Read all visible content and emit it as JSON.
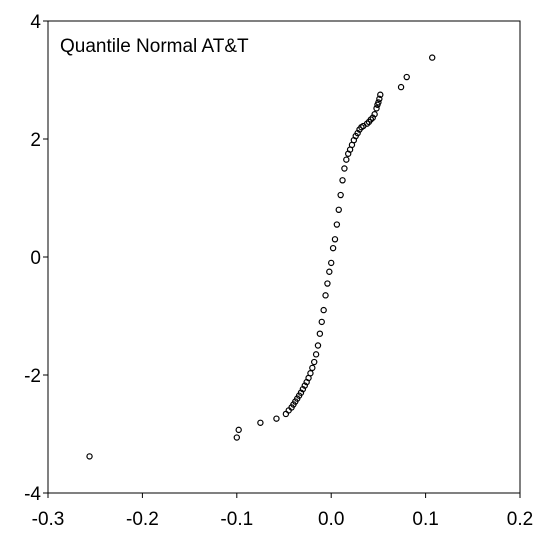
{
  "chart_data": {
    "type": "scatter",
    "title": "Quantile Normal AT&T",
    "xlabel": "",
    "ylabel": "",
    "xlim": [
      -0.3,
      0.2
    ],
    "ylim": [
      -4,
      4
    ],
    "x_ticks": [
      -0.3,
      -0.2,
      -0.1,
      0.0,
      0.1,
      0.2
    ],
    "x_tick_labels": [
      "-0.3",
      "-0.2",
      "-0.1",
      "0.0",
      "0.1",
      "0.2"
    ],
    "y_ticks": [
      -4,
      -2,
      0,
      2,
      4
    ],
    "y_tick_labels": [
      "-4",
      "-2",
      "0",
      "2",
      "4"
    ],
    "grid": false,
    "legend": "none",
    "marker": "open-circle",
    "marker_color": "#000000",
    "series": [
      {
        "points": [
          [
            -0.256,
            -3.38
          ],
          [
            -0.1,
            -3.06
          ],
          [
            -0.098,
            -2.93
          ],
          [
            -0.075,
            -2.81
          ],
          [
            -0.058,
            -2.74
          ],
          [
            -0.048,
            -2.66
          ],
          [
            -0.045,
            -2.6
          ],
          [
            -0.042,
            -2.55
          ],
          [
            -0.04,
            -2.5
          ],
          [
            -0.038,
            -2.45
          ],
          [
            -0.036,
            -2.4
          ],
          [
            -0.034,
            -2.35
          ],
          [
            -0.032,
            -2.3
          ],
          [
            -0.03,
            -2.24
          ],
          [
            -0.028,
            -2.18
          ],
          [
            -0.026,
            -2.12
          ],
          [
            -0.024,
            -2.05
          ],
          [
            -0.022,
            -1.97
          ],
          [
            -0.02,
            -1.88
          ],
          [
            -0.018,
            -1.78
          ],
          [
            -0.016,
            -1.65
          ],
          [
            -0.014,
            -1.5
          ],
          [
            -0.012,
            -1.3
          ],
          [
            -0.01,
            -1.1
          ],
          [
            -0.008,
            -0.9
          ],
          [
            -0.006,
            -0.65
          ],
          [
            -0.004,
            -0.45
          ],
          [
            -0.002,
            -0.25
          ],
          [
            0.0,
            -0.1
          ],
          [
            0.002,
            0.15
          ],
          [
            0.004,
            0.3
          ],
          [
            0.006,
            0.55
          ],
          [
            0.008,
            0.8
          ],
          [
            0.01,
            1.05
          ],
          [
            0.012,
            1.3
          ],
          [
            0.014,
            1.5
          ],
          [
            0.016,
            1.65
          ],
          [
            0.018,
            1.75
          ],
          [
            0.02,
            1.82
          ],
          [
            0.022,
            1.9
          ],
          [
            0.024,
            1.98
          ],
          [
            0.026,
            2.05
          ],
          [
            0.028,
            2.1
          ],
          [
            0.03,
            2.16
          ],
          [
            0.032,
            2.2
          ],
          [
            0.034,
            2.22
          ],
          [
            0.038,
            2.26
          ],
          [
            0.04,
            2.29
          ],
          [
            0.042,
            2.33
          ],
          [
            0.044,
            2.36
          ],
          [
            0.046,
            2.42
          ],
          [
            0.048,
            2.52
          ],
          [
            0.049,
            2.58
          ],
          [
            0.05,
            2.62
          ],
          [
            0.051,
            2.68
          ],
          [
            0.052,
            2.75
          ],
          [
            0.074,
            2.88
          ],
          [
            0.08,
            3.05
          ],
          [
            0.107,
            3.38
          ]
        ]
      }
    ]
  }
}
